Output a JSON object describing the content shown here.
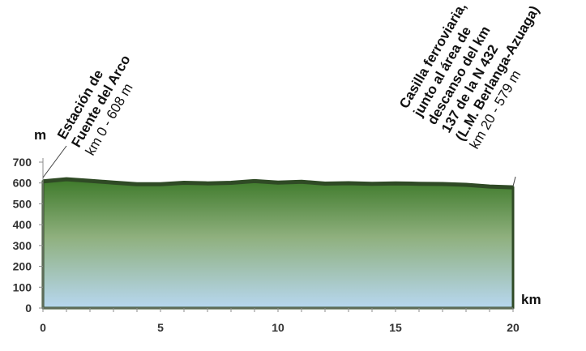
{
  "chart_data": {
    "type": "area",
    "x_unit": "km",
    "y_unit": "m",
    "xlim": [
      0,
      20
    ],
    "ylim": [
      0,
      700
    ],
    "x_ticks": [
      "0",
      "5",
      "10",
      "15",
      "20"
    ],
    "y_ticks": [
      "0",
      "100",
      "200",
      "300",
      "400",
      "500",
      "600",
      "700"
    ],
    "grid": false,
    "legend": "none",
    "colors": {
      "fill_top": "#3e7a2a",
      "fill_bottom": "#b7d7f0",
      "line": "#2f4a25"
    },
    "points": [
      {
        "x": 0,
        "y": 608
      },
      {
        "x": 1,
        "y": 618
      },
      {
        "x": 2,
        "y": 610
      },
      {
        "x": 3,
        "y": 602
      },
      {
        "x": 4,
        "y": 594
      },
      {
        "x": 5,
        "y": 594
      },
      {
        "x": 6,
        "y": 601
      },
      {
        "x": 7,
        "y": 598
      },
      {
        "x": 8,
        "y": 601
      },
      {
        "x": 9,
        "y": 609
      },
      {
        "x": 10,
        "y": 602
      },
      {
        "x": 11,
        "y": 606
      },
      {
        "x": 12,
        "y": 597
      },
      {
        "x": 13,
        "y": 599
      },
      {
        "x": 14,
        "y": 596
      },
      {
        "x": 15,
        "y": 598
      },
      {
        "x": 16,
        "y": 596
      },
      {
        "x": 17,
        "y": 595
      },
      {
        "x": 18,
        "y": 591
      },
      {
        "x": 19,
        "y": 583
      },
      {
        "x": 20,
        "y": 579
      }
    ],
    "annotations": [
      {
        "x": 0,
        "y": 608,
        "lines": [
          "Estación de",
          "Fuente del Arco"
        ],
        "detail": "km 0 - 608 m"
      },
      {
        "x": 20,
        "y": 579,
        "lines": [
          "Casilla ferroviaria,",
          "junto al área de",
          "descanso del km",
          "137 de la N 432",
          "(L.M. Berlanga-Azuaga)"
        ],
        "detail": "km 20 - 579 m"
      }
    ]
  }
}
